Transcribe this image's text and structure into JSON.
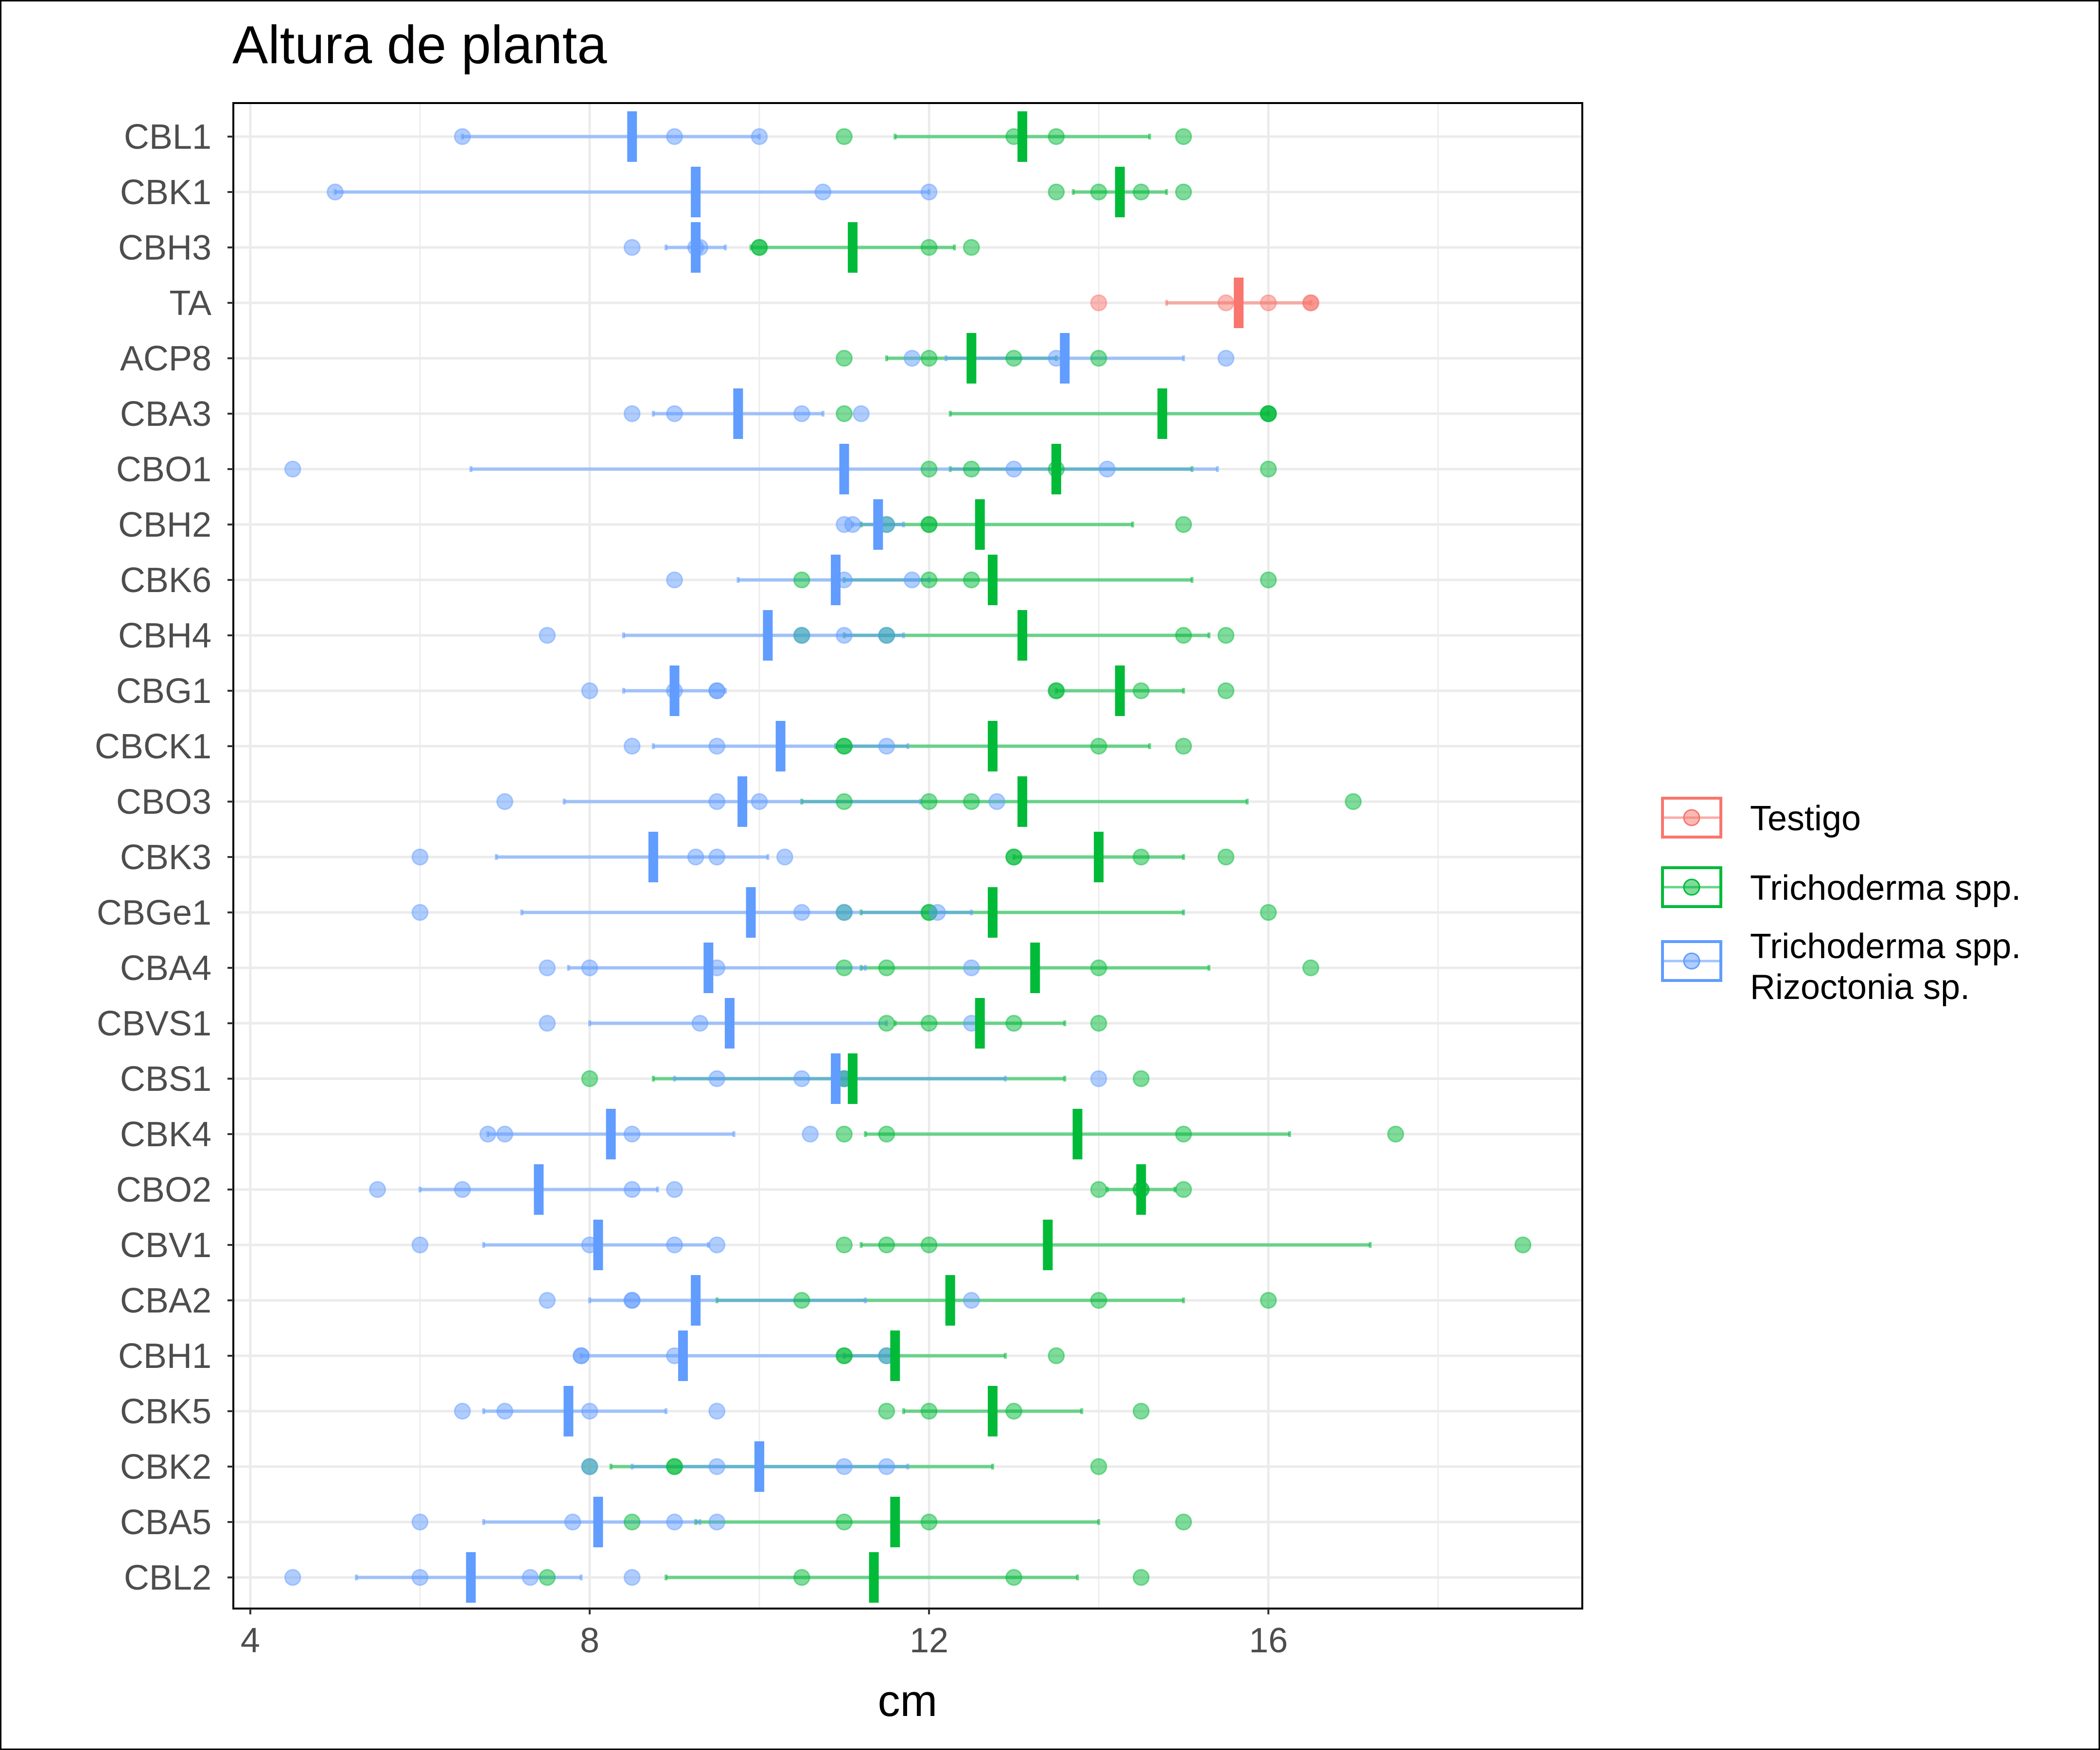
{
  "chart_data": {
    "type": "scatter",
    "title": "Altura de planta",
    "xlabel": "cm",
    "ylabel": "",
    "xlim": [
      3.8,
      19.7
    ],
    "xticks": [
      4,
      8,
      12,
      16
    ],
    "grid": true,
    "legend_position": "right",
    "categories": [
      "CBL1",
      "CBK1",
      "CBH3",
      "TA",
      "ACP8",
      "CBA3",
      "CBO1",
      "CBH2",
      "CBK6",
      "CBH4",
      "CBG1",
      "CBCK1",
      "CBO3",
      "CBK3",
      "CBGe1",
      "CBA4",
      "CBVS1",
      "CBS1",
      "CBK4",
      "CBO2",
      "CBV1",
      "CBA2",
      "CBH1",
      "CBK5",
      "CBK2",
      "CBA5",
      "CBL2"
    ],
    "series": [
      {
        "name": "Testigo",
        "color": "#F8766D",
        "groups": [
          {
            "category": "TA",
            "mean": 15.65,
            "err": [
              14.8,
              16.5
            ],
            "points": [
              14.0,
              15.5,
              16.0,
              16.5,
              16.5
            ]
          }
        ]
      },
      {
        "name": "Trichoderma spp.",
        "color": "#00BA38",
        "groups": [
          {
            "category": "CBL1",
            "mean": 13.1,
            "err": [
              11.6,
              14.6
            ],
            "points": [
              11.0,
              13.0,
              13.5,
              15.0
            ]
          },
          {
            "category": "CBK1",
            "mean": 14.25,
            "err": [
              13.7,
              14.8
            ],
            "points": [
              13.5,
              14.0,
              14.5,
              15.0
            ]
          },
          {
            "category": "CBH3",
            "mean": 11.1,
            "err": [
              9.9,
              12.3
            ],
            "points": [
              10.0,
              10.0,
              12.0,
              12.5
            ]
          },
          {
            "category": "ACP8",
            "mean": 12.5,
            "err": [
              11.5,
              13.5
            ],
            "points": [
              11.0,
              12.0,
              13.0,
              14.0
            ]
          },
          {
            "category": "CBA3",
            "mean": 14.75,
            "err": [
              12.25,
              16.0
            ],
            "points": [
              11.0,
              16.0,
              16.0,
              16.0
            ]
          },
          {
            "category": "CBO1",
            "mean": 13.5,
            "err": [
              12.25,
              15.1
            ],
            "points": [
              12.0,
              12.5,
              13.5,
              16.0
            ]
          },
          {
            "category": "CBH2",
            "mean": 12.6,
            "err": [
              11.2,
              14.4
            ],
            "points": [
              11.5,
              12.0,
              12.0,
              15.0
            ]
          },
          {
            "category": "CBK6",
            "mean": 12.75,
            "err": [
              11.0,
              15.1
            ],
            "points": [
              10.5,
              12.0,
              12.5,
              16.0
            ]
          },
          {
            "category": "CBH4",
            "mean": 13.1,
            "err": [
              11.0,
              15.3
            ],
            "points": [
              10.5,
              11.5,
              15.0,
              15.5
            ]
          },
          {
            "category": "CBG1",
            "mean": 14.25,
            "err": [
              13.5,
              15.0
            ],
            "points": [
              13.5,
              13.5,
              14.5,
              15.5
            ]
          },
          {
            "category": "CBCK1",
            "mean": 12.75,
            "err": [
              10.9,
              14.6
            ],
            "points": [
              11.0,
              11.0,
              14.0,
              15.0
            ]
          },
          {
            "category": "CBO3",
            "mean": 13.1,
            "err": [
              10.5,
              15.75
            ],
            "points": [
              11.0,
              12.0,
              12.5,
              17.0
            ]
          },
          {
            "category": "CBK3",
            "mean": 14.0,
            "err": [
              13.0,
              15.0
            ],
            "points": [
              13.0,
              13.0,
              14.5,
              15.5
            ]
          },
          {
            "category": "CBGe1",
            "mean": 12.75,
            "err": [
              11.2,
              15.0
            ],
            "points": [
              11.0,
              12.0,
              12.0,
              16.0
            ]
          },
          {
            "category": "CBA4",
            "mean": 13.25,
            "err": [
              11.2,
              15.3
            ],
            "points": [
              11.0,
              11.5,
              14.0,
              16.5
            ]
          },
          {
            "category": "CBVS1",
            "mean": 12.6,
            "err": [
              11.6,
              13.6
            ],
            "points": [
              11.5,
              12.0,
              13.0,
              14.0
            ]
          },
          {
            "category": "CBS1",
            "mean": 11.1,
            "err": [
              8.75,
              13.6
            ],
            "points": [
              8.0,
              11.0,
              11.0,
              14.5
            ]
          },
          {
            "category": "CBK4",
            "mean": 13.75,
            "err": [
              11.25,
              16.25
            ],
            "points": [
              11.0,
              11.5,
              15.0,
              17.5
            ]
          },
          {
            "category": "CBO2",
            "mean": 14.5,
            "err": [
              14.1,
              14.9
            ],
            "points": [
              14.0,
              14.5,
              14.5,
              15.0
            ]
          },
          {
            "category": "CBV1",
            "mean": 13.4,
            "err": [
              11.2,
              17.2
            ],
            "points": [
              11.0,
              11.5,
              12.0,
              19.0
            ]
          },
          {
            "category": "CBA2",
            "mean": 12.25,
            "err": [
              9.5,
              15.0
            ],
            "points": [
              10.5,
              14.0,
              16.0
            ]
          },
          {
            "category": "CBH1",
            "mean": 11.6,
            "err": [
              11.0,
              12.9
            ],
            "points": [
              11.0,
              11.0,
              11.5,
              13.5
            ]
          },
          {
            "category": "CBK5",
            "mean": 12.75,
            "err": [
              11.7,
              13.8
            ],
            "points": [
              11.5,
              12.0,
              13.0,
              14.5
            ]
          },
          {
            "category": "CBK2",
            "mean": 10.0,
            "err": [
              8.25,
              12.75
            ],
            "points": [
              8.0,
              9.0,
              9.0,
              14.0
            ]
          },
          {
            "category": "CBA5",
            "mean": 11.6,
            "err": [
              9.25,
              14.0
            ],
            "points": [
              8.5,
              11.0,
              12.0,
              15.0
            ]
          },
          {
            "category": "CBL2",
            "mean": 11.35,
            "err": [
              8.9,
              13.75
            ],
            "points": [
              7.5,
              10.5,
              13.0,
              14.5
            ]
          }
        ]
      },
      {
        "name": "Trichoderma spp.\nRizoctonia sp.",
        "color": "#619CFF",
        "groups": [
          {
            "category": "CBL1",
            "mean": 8.5,
            "err": [
              6.5,
              10.0
            ],
            "points": [
              6.5,
              9.0,
              10.0
            ]
          },
          {
            "category": "CBK1",
            "mean": 9.25,
            "err": [
              5.0,
              12.0
            ],
            "points": [
              5.0,
              10.75,
              12.0
            ]
          },
          {
            "category": "CBH3",
            "mean": 9.25,
            "err": [
              8.9,
              9.6
            ],
            "points": [
              8.5,
              9.25,
              9.3
            ]
          },
          {
            "category": "ACP8",
            "mean": 13.6,
            "err": [
              12.2,
              15.0
            ],
            "points": [
              11.8,
              13.5,
              15.5
            ]
          },
          {
            "category": "CBA3",
            "mean": 9.75,
            "err": [
              8.75,
              10.75
            ],
            "points": [
              8.5,
              9.0,
              10.5,
              11.2
            ]
          },
          {
            "category": "CBO1",
            "mean": 11.0,
            "err": [
              6.6,
              15.4
            ],
            "points": [
              4.5,
              13.0,
              14.1
            ]
          },
          {
            "category": "CBH2",
            "mean": 11.4,
            "err": [
              11.1,
              11.7
            ],
            "points": [
              11.0,
              11.1,
              11.5
            ]
          },
          {
            "category": "CBK6",
            "mean": 10.9,
            "err": [
              9.75,
              12.0
            ],
            "points": [
              9.0,
              11.0,
              11.8
            ]
          },
          {
            "category": "CBH4",
            "mean": 10.1,
            "err": [
              8.4,
              11.7
            ],
            "points": [
              7.5,
              10.5,
              11.0,
              11.5
            ]
          },
          {
            "category": "CBG1",
            "mean": 9.0,
            "err": [
              8.4,
              9.6
            ],
            "points": [
              8.0,
              9.0,
              9.5,
              9.5
            ]
          },
          {
            "category": "CBCK1",
            "mean": 10.25,
            "err": [
              8.75,
              11.75
            ],
            "points": [
              8.5,
              9.5,
              11.5
            ]
          },
          {
            "category": "CBO3",
            "mean": 9.8,
            "err": [
              7.7,
              11.9
            ],
            "points": [
              7.0,
              9.5,
              10.0,
              12.8
            ]
          },
          {
            "category": "CBK3",
            "mean": 8.75,
            "err": [
              6.9,
              10.1
            ],
            "points": [
              6.0,
              9.25,
              9.5,
              10.3
            ]
          },
          {
            "category": "CBGe1",
            "mean": 9.9,
            "err": [
              7.2,
              12.5
            ],
            "points": [
              6.0,
              10.5,
              11.0,
              12.1
            ]
          },
          {
            "category": "CBA4",
            "mean": 9.4,
            "err": [
              7.75,
              11.25
            ],
            "points": [
              7.5,
              8.0,
              9.5,
              12.5
            ]
          },
          {
            "category": "CBVS1",
            "mean": 9.65,
            "err": [
              8.0,
              11.5
            ],
            "points": [
              7.5,
              9.3,
              12.5
            ]
          },
          {
            "category": "CBS1",
            "mean": 10.9,
            "err": [
              9.0,
              12.9
            ],
            "points": [
              9.5,
              10.5,
              11.0,
              14.0
            ]
          },
          {
            "category": "CBK4",
            "mean": 8.25,
            "err": [
              6.8,
              9.7
            ],
            "points": [
              6.8,
              7.0,
              8.5,
              10.6
            ]
          },
          {
            "category": "CBO2",
            "mean": 7.4,
            "err": [
              6.0,
              8.8
            ],
            "points": [
              5.5,
              6.5,
              8.5,
              9.0
            ]
          },
          {
            "category": "CBV1",
            "mean": 8.1,
            "err": [
              6.75,
              9.4
            ],
            "points": [
              6.0,
              8.0,
              9.0,
              9.5
            ]
          },
          {
            "category": "CBA2",
            "mean": 9.25,
            "err": [
              8.0,
              11.25
            ],
            "points": [
              7.5,
              8.5,
              8.5,
              12.5
            ]
          },
          {
            "category": "CBH1",
            "mean": 9.1,
            "err": [
              7.9,
              11.6
            ],
            "points": [
              7.9,
              7.9,
              9.0,
              11.5
            ]
          },
          {
            "category": "CBK5",
            "mean": 7.75,
            "err": [
              6.75,
              8.9
            ],
            "points": [
              6.5,
              7.0,
              8.0,
              9.5
            ]
          },
          {
            "category": "CBK2",
            "mean": 10.0,
            "err": [
              8.5,
              11.75
            ],
            "points": [
              8.0,
              9.5,
              11.0,
              11.5
            ]
          },
          {
            "category": "CBA5",
            "mean": 8.1,
            "err": [
              6.75,
              9.3
            ],
            "points": [
              6.0,
              7.8,
              9.0,
              9.5
            ]
          },
          {
            "category": "CBL2",
            "mean": 6.6,
            "err": [
              5.25,
              7.9
            ],
            "points": [
              4.5,
              6.0,
              7.3,
              8.5
            ]
          }
        ]
      }
    ]
  }
}
